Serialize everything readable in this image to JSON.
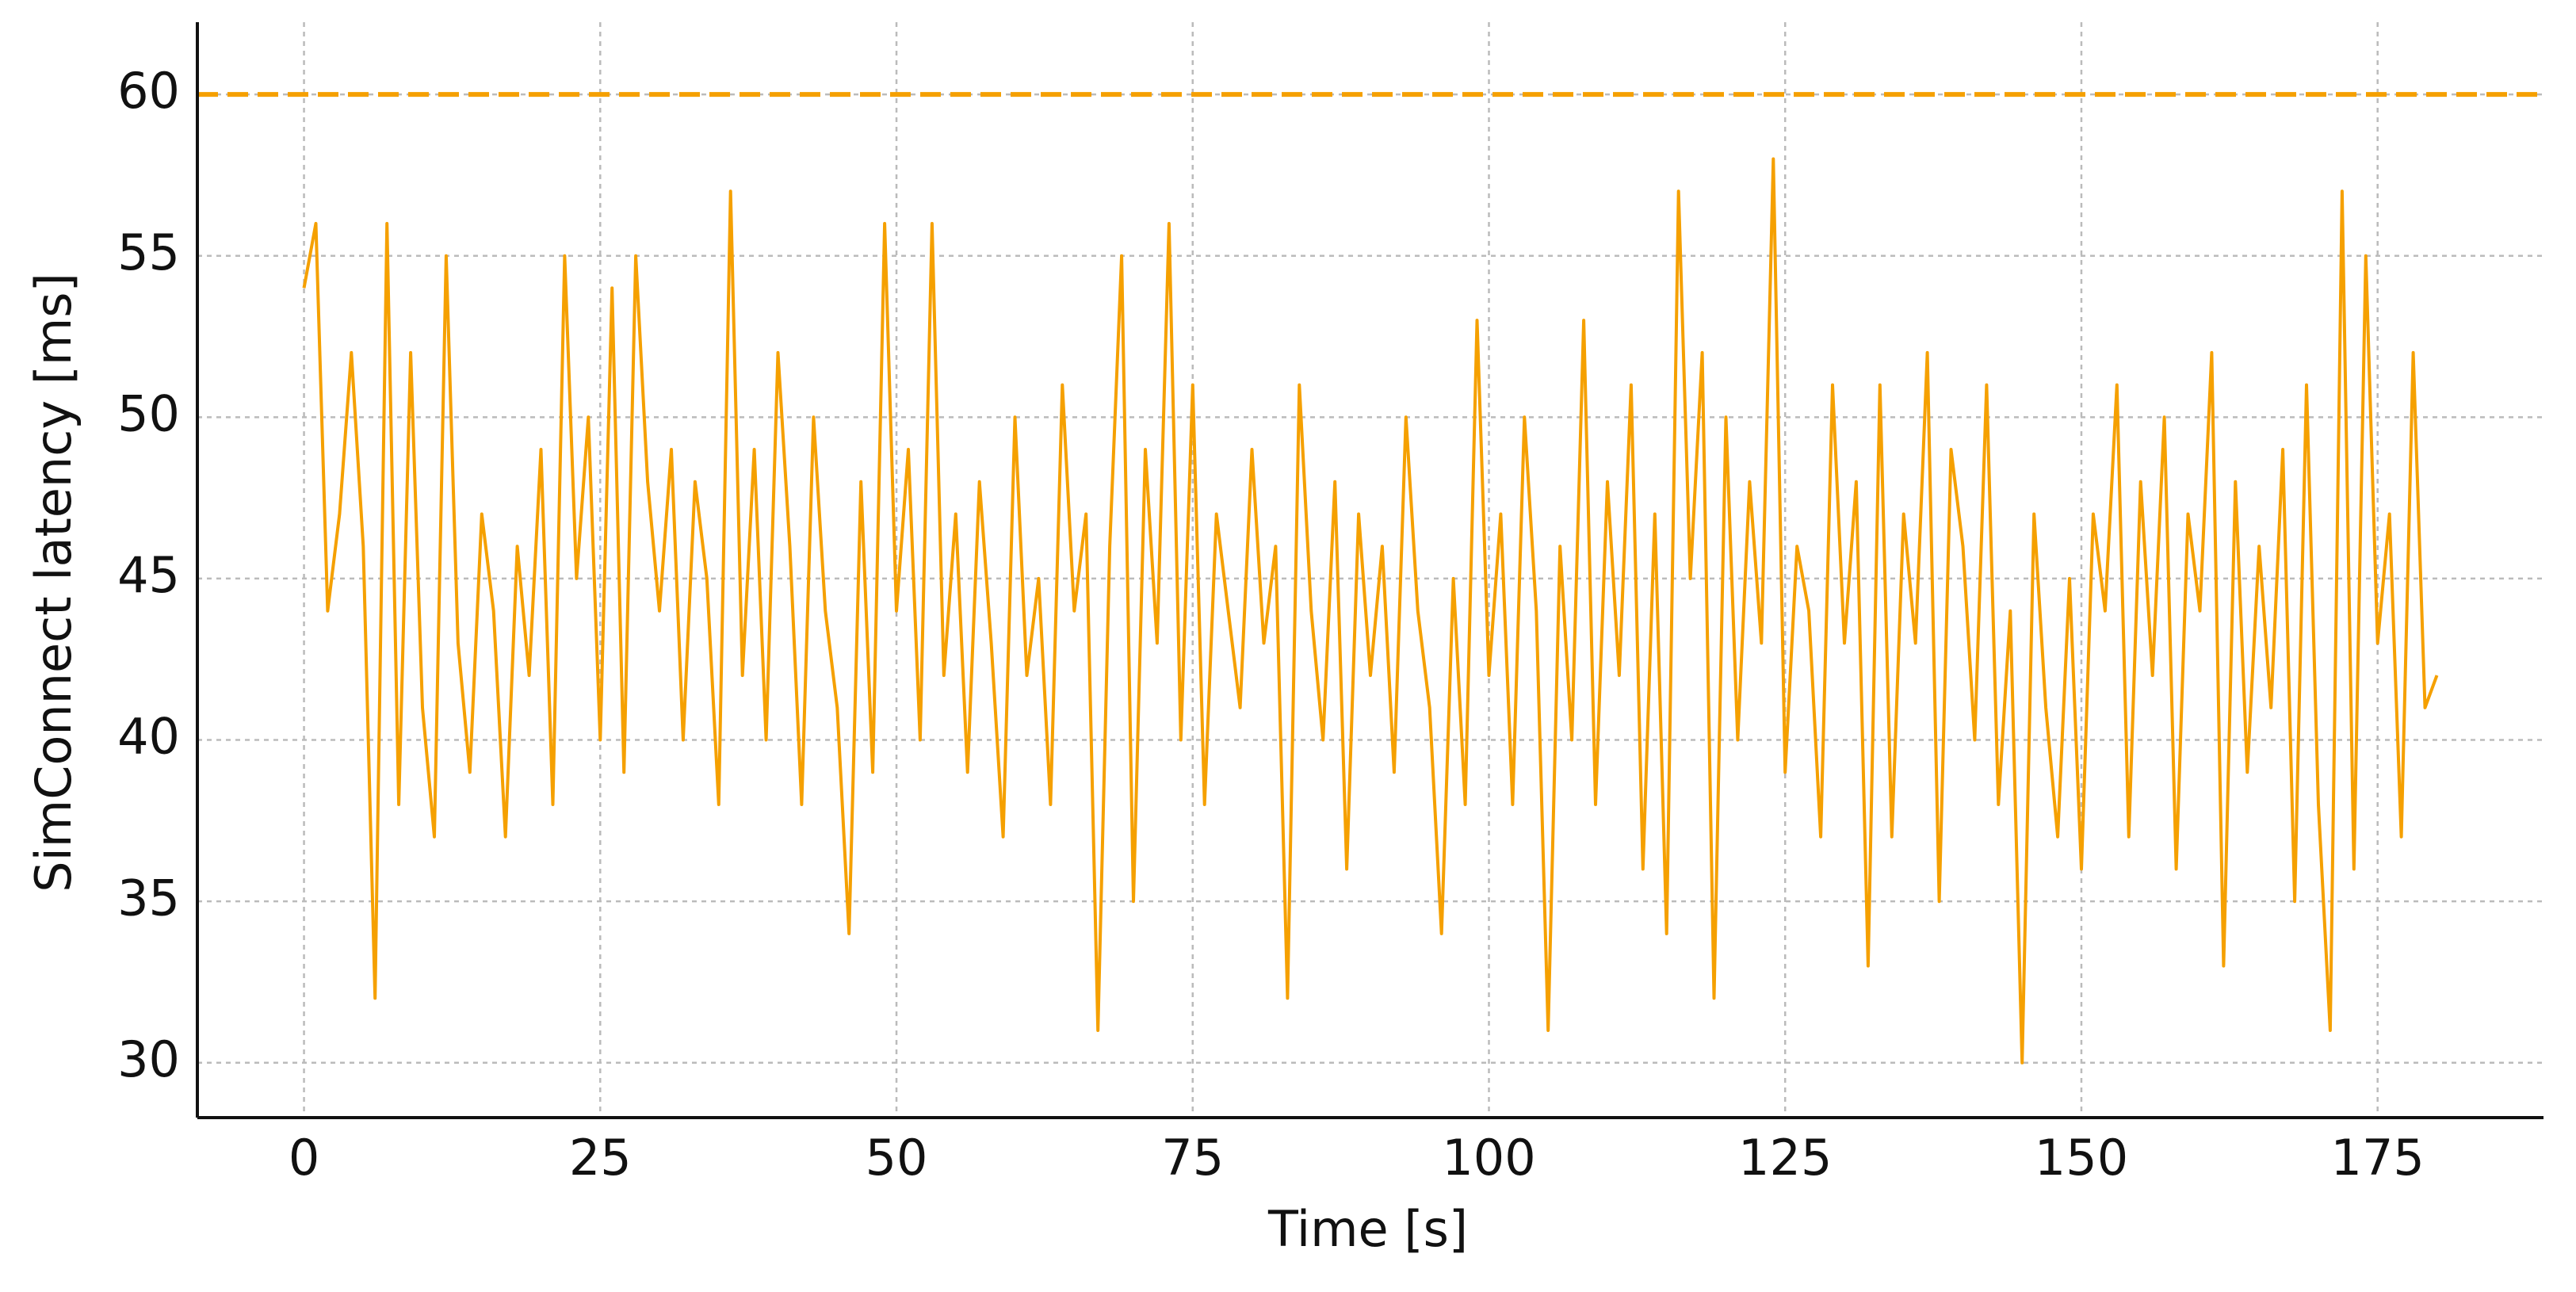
{
  "chart_data": {
    "type": "line",
    "x_label": "Time [s]",
    "y_label": "SimConnect latency [ms]",
    "x": [
      0,
      1,
      2,
      3,
      4,
      5,
      6,
      7,
      8,
      9,
      10,
      11,
      12,
      13,
      14,
      15,
      16,
      17,
      18,
      19,
      20,
      21,
      22,
      23,
      24,
      25,
      26,
      27,
      28,
      29,
      30,
      31,
      32,
      33,
      34,
      35,
      36,
      37,
      38,
      39,
      40,
      41,
      42,
      43,
      44,
      45,
      46,
      47,
      48,
      49,
      50,
      51,
      52,
      53,
      54,
      55,
      56,
      57,
      58,
      59,
      60,
      61,
      62,
      63,
      64,
      65,
      66,
      67,
      68,
      69,
      70,
      71,
      72,
      73,
      74,
      75,
      76,
      77,
      78,
      79,
      80,
      81,
      82,
      83,
      84,
      85,
      86,
      87,
      88,
      89,
      90,
      91,
      92,
      93,
      94,
      95,
      96,
      97,
      98,
      99,
      100,
      101,
      102,
      103,
      104,
      105,
      106,
      107,
      108,
      109,
      110,
      111,
      112,
      113,
      114,
      115,
      116,
      117,
      118,
      119,
      120,
      121,
      122,
      123,
      124,
      125,
      126,
      127,
      128,
      129,
      130,
      131,
      132,
      133,
      134,
      135,
      136,
      137,
      138,
      139,
      140,
      141,
      142,
      143,
      144,
      145,
      146,
      147,
      148,
      149,
      150,
      151,
      152,
      153,
      154,
      155,
      156,
      157,
      158,
      159,
      160,
      161,
      162,
      163,
      164,
      165,
      166,
      167,
      168,
      169,
      170,
      171,
      172,
      173,
      174,
      175,
      176,
      177,
      178,
      179,
      180
    ],
    "series": [
      {
        "color": "#f5a000",
        "values": [
          54,
          56,
          44,
          47,
          52,
          46,
          32,
          56,
          38,
          52,
          41,
          37,
          55,
          43,
          39,
          47,
          44,
          37,
          46,
          42,
          49,
          38,
          55,
          45,
          50,
          40,
          54,
          39,
          55,
          48,
          44,
          49,
          40,
          48,
          45,
          38,
          57,
          42,
          49,
          40,
          52,
          46,
          38,
          50,
          44,
          41,
          34,
          48,
          39,
          56,
          44,
          49,
          40,
          56,
          42,
          47,
          39,
          48,
          43,
          37,
          50,
          42,
          45,
          38,
          51,
          44,
          47,
          31,
          46,
          55,
          35,
          49,
          43,
          56,
          40,
          51,
          38,
          47,
          44,
          41,
          49,
          43,
          46,
          32,
          51,
          44,
          40,
          48,
          36,
          47,
          42,
          46,
          39,
          50,
          44,
          41,
          34,
          45,
          38,
          53,
          42,
          47,
          38,
          50,
          44,
          31,
          46,
          40,
          53,
          38,
          48,
          42,
          51,
          36,
          47,
          34,
          57,
          45,
          52,
          32,
          50,
          40,
          48,
          43,
          58,
          39,
          46,
          44,
          37,
          51,
          43,
          48,
          33,
          51,
          37,
          47,
          43,
          52,
          35,
          49,
          46,
          40,
          51,
          38,
          44,
          30,
          47,
          41,
          37,
          45,
          36,
          47,
          44,
          51,
          37,
          48,
          42,
          50,
          36,
          47,
          44,
          52,
          33,
          48,
          39,
          46,
          41,
          49,
          35,
          51,
          38,
          31,
          57,
          36,
          55,
          43,
          47,
          37,
          52,
          41,
          42
        ]
      }
    ],
    "reference_line": {
      "value": 60,
      "color": "#f5a000",
      "style": "dashed"
    },
    "xlim": [
      -9,
      189
    ],
    "xticks": [
      0,
      25,
      50,
      75,
      100,
      125,
      150,
      175
    ],
    "ylim": [
      28.3,
      61.5
    ],
    "yticks": [
      30,
      35,
      40,
      45,
      50,
      55,
      60
    ],
    "grid": true
  }
}
